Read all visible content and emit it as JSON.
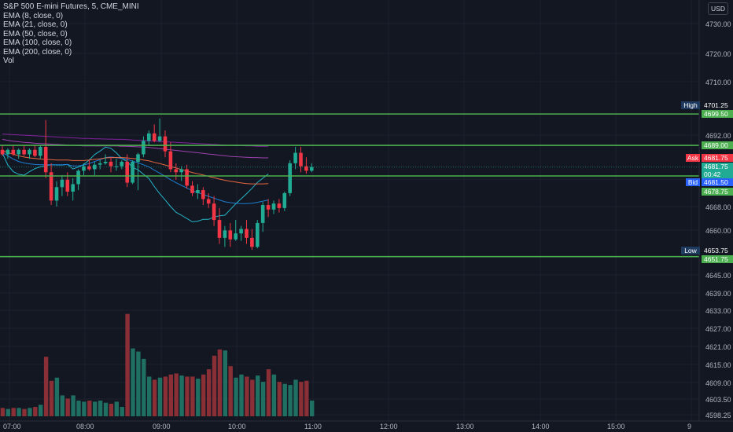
{
  "legend": {
    "title": "S&P 500 E-mini Futures, 5, CME_MINI",
    "indicators": [
      "EMA (8, close, 0)",
      "EMA (21, close, 0)",
      "EMA (50, close, 0)",
      "EMA (100, close, 0)",
      "EMA (200, close, 0)",
      "Vol"
    ]
  },
  "currency": "USD",
  "price_axis": [
    "4730.00",
    "4720.00",
    "4710.00",
    "4692.00",
    "4668.00",
    "4660.00",
    "4645.00",
    "4639.00",
    "4633.00",
    "4627.00",
    "4621.00",
    "4615.00",
    "4609.00",
    "4603.50",
    "4598.25"
  ],
  "time_axis": [
    "07:00",
    "08:00",
    "09:00",
    "10:00",
    "11:00",
    "12:00",
    "13:00",
    "14:00",
    "15:00",
    "9"
  ],
  "levels": {
    "high_label": "High",
    "high_value": "4701.25",
    "line1": "4699.50",
    "line2": "4689.00",
    "ask_label": "Ask",
    "ask_value": "4681.75",
    "last_value": "4681.75",
    "countdown": "00:42",
    "bid_label": "Bid",
    "bid_value": "4681.50",
    "line3": "4678.75",
    "low_label": "Low",
    "low_value": "4653.75",
    "line4": "4651.75"
  },
  "colors": {
    "up": "#22ab94",
    "down": "#f23645",
    "level_line": "#4caf50",
    "background": "#131722"
  },
  "chart_data": {
    "type": "candlestick",
    "symbol": "S&P 500 E-mini Futures",
    "interval": "5",
    "ylim": [
      4598.25,
      4733
    ],
    "candles": [
      {
        "o": 4687.5,
        "h": 4689,
        "l": 4685.5,
        "c": 4686
      },
      {
        "o": 4686,
        "h": 4688,
        "l": 4684.5,
        "c": 4687.5
      },
      {
        "o": 4687.5,
        "h": 4689,
        "l": 4685.5,
        "c": 4686
      },
      {
        "o": 4686,
        "h": 4688,
        "l": 4684.5,
        "c": 4687.5
      },
      {
        "o": 4687.5,
        "h": 4689,
        "l": 4685.5,
        "c": 4686
      },
      {
        "o": 4686,
        "h": 4688,
        "l": 4684.5,
        "c": 4687.5
      },
      {
        "o": 4687.5,
        "h": 4689,
        "l": 4685,
        "c": 4685.5
      },
      {
        "o": 4685.5,
        "h": 4689,
        "l": 4684.5,
        "c": 4688.5
      },
      {
        "o": 4688.5,
        "h": 4697.5,
        "l": 4678,
        "c": 4680
      },
      {
        "o": 4680,
        "h": 4683,
        "l": 4669,
        "c": 4670.5
      },
      {
        "o": 4670.5,
        "h": 4677,
        "l": 4668.5,
        "c": 4675
      },
      {
        "o": 4675,
        "h": 4679,
        "l": 4672,
        "c": 4677.5
      },
      {
        "o": 4677.5,
        "h": 4680,
        "l": 4672,
        "c": 4673.5
      },
      {
        "o": 4673.5,
        "h": 4678,
        "l": 4670.5,
        "c": 4676
      },
      {
        "o": 4676,
        "h": 4681,
        "l": 4674,
        "c": 4680.5
      },
      {
        "o": 4680.5,
        "h": 4683,
        "l": 4679,
        "c": 4682
      },
      {
        "o": 4682,
        "h": 4684,
        "l": 4680.5,
        "c": 4681
      },
      {
        "o": 4681,
        "h": 4683.5,
        "l": 4679,
        "c": 4682.5
      },
      {
        "o": 4682.5,
        "h": 4684,
        "l": 4681,
        "c": 4683
      },
      {
        "o": 4683,
        "h": 4686,
        "l": 4682.5,
        "c": 4683.5
      },
      {
        "o": 4683.5,
        "h": 4685,
        "l": 4680,
        "c": 4682
      },
      {
        "o": 4682,
        "h": 4684.5,
        "l": 4680.5,
        "c": 4682
      },
      {
        "o": 4682,
        "h": 4684,
        "l": 4681,
        "c": 4683.5
      },
      {
        "o": 4683.5,
        "h": 4686,
        "l": 4675,
        "c": 4676.5
      },
      {
        "o": 4676.5,
        "h": 4684,
        "l": 4676,
        "c": 4683.5
      },
      {
        "o": 4683.5,
        "h": 4686.5,
        "l": 4674,
        "c": 4686
      },
      {
        "o": 4686,
        "h": 4692,
        "l": 4685,
        "c": 4690.5
      },
      {
        "o": 4690.5,
        "h": 4694,
        "l": 4689,
        "c": 4693
      },
      {
        "o": 4693,
        "h": 4696,
        "l": 4690,
        "c": 4690.5
      },
      {
        "o": 4690.5,
        "h": 4698,
        "l": 4690,
        "c": 4692
      },
      {
        "o": 4692,
        "h": 4694,
        "l": 4685,
        "c": 4687
      },
      {
        "o": 4687,
        "h": 4690,
        "l": 4680,
        "c": 4681
      },
      {
        "o": 4681,
        "h": 4683,
        "l": 4677.5,
        "c": 4680
      },
      {
        "o": 4680,
        "h": 4682,
        "l": 4677,
        "c": 4681
      },
      {
        "o": 4681,
        "h": 4682.5,
        "l": 4674.5,
        "c": 4675.5
      },
      {
        "o": 4675.5,
        "h": 4677,
        "l": 4672,
        "c": 4673
      },
      {
        "o": 4673,
        "h": 4676,
        "l": 4671,
        "c": 4674
      },
      {
        "o": 4674,
        "h": 4675,
        "l": 4669,
        "c": 4671
      },
      {
        "o": 4671,
        "h": 4673,
        "l": 4668,
        "c": 4669.5
      },
      {
        "o": 4669.5,
        "h": 4672,
        "l": 4662,
        "c": 4664
      },
      {
        "o": 4664,
        "h": 4668,
        "l": 4656,
        "c": 4658
      },
      {
        "o": 4658,
        "h": 4662,
        "l": 4655,
        "c": 4660.5
      },
      {
        "o": 4660.5,
        "h": 4663,
        "l": 4655,
        "c": 4657.5
      },
      {
        "o": 4657.5,
        "h": 4664,
        "l": 4657,
        "c": 4659.5
      },
      {
        "o": 4659.5,
        "h": 4662,
        "l": 4657,
        "c": 4661
      },
      {
        "o": 4661,
        "h": 4664,
        "l": 4656,
        "c": 4658
      },
      {
        "o": 4658,
        "h": 4661,
        "l": 4654,
        "c": 4655
      },
      {
        "o": 4655,
        "h": 4664,
        "l": 4654.5,
        "c": 4663
      },
      {
        "o": 4663,
        "h": 4670,
        "l": 4660,
        "c": 4669
      },
      {
        "o": 4669,
        "h": 4671,
        "l": 4665,
        "c": 4667.5
      },
      {
        "o": 4667.5,
        "h": 4670.5,
        "l": 4666,
        "c": 4669.5
      },
      {
        "o": 4669.5,
        "h": 4671,
        "l": 4666.5,
        "c": 4668
      },
      {
        "o": 4668,
        "h": 4673.5,
        "l": 4667,
        "c": 4673
      },
      {
        "o": 4673,
        "h": 4684,
        "l": 4672,
        "c": 4683
      },
      {
        "o": 4683,
        "h": 4688.5,
        "l": 4681,
        "c": 4686.5
      },
      {
        "o": 4686.5,
        "h": 4688.5,
        "l": 4680,
        "c": 4682
      },
      {
        "o": 4682,
        "h": 4685,
        "l": 4679.5,
        "c": 4680.5
      },
      {
        "o": 4680.5,
        "h": 4683,
        "l": 4680,
        "c": 4681.75
      }
    ],
    "volume_units": "relative",
    "volume_max": 100,
    "volumes": [
      8,
      7,
      8,
      8,
      7,
      8,
      9,
      11,
      57,
      34,
      37,
      20,
      17,
      20,
      15,
      14,
      15,
      14,
      15,
      13,
      12,
      14,
      9,
      98,
      65,
      62,
      55,
      38,
      35,
      37,
      38,
      40,
      41,
      39,
      38,
      38,
      36,
      40,
      45,
      58,
      64,
      63,
      48,
      37,
      40,
      38,
      35,
      39,
      33,
      45,
      40,
      33,
      31,
      30,
      35,
      33,
      34,
      15
    ],
    "ema_lines": [
      {
        "name": "EMA (8, close, 0)",
        "color": "#26c6da",
        "values": [
          4686.5,
          4682.4,
          4680.2,
          4679.3,
          4679,
          4680.2,
          4681.2,
          4681.8,
          4682.2,
          4682.5,
          4682.4,
          4682.4,
          4682.6,
          4681.1,
          4681.7,
          4682.6,
          4684.1,
          4685.9,
          4687.1,
          4688.4,
          4688,
          4686.5,
          4684.6,
          4683.6,
          4681.6,
          4680.8,
          4679.3,
          4677.9,
          4675.2,
          4672.8,
          4670.7,
          4668.5,
          4666.6,
          4665.6,
          4664.5,
          4663.4,
          4663.6,
          4664.2,
          4664.2,
          4665,
          4665.4,
          4665.6,
          4667.5,
          4669.4,
          4671.1,
          4672.8,
          4674.6,
          4676.6,
          4678,
          4679.4
        ]
      },
      {
        "name": "EMA (21, close, 0)",
        "color": "#1e88e5",
        "values": [
          4686.6,
          4685.5,
          4684.4,
          4683.6,
          4683.1,
          4682.8,
          4682.6,
          4682.5,
          4682.5,
          4682.5,
          4682.5,
          4682.5,
          4682.6,
          4682.1,
          4682.1,
          4682.4,
          4682.9,
          4683.6,
          4684.2,
          4684.9,
          4685.1,
          4684.9,
          4684.6,
          4684.3,
          4683.7,
          4683.2,
          4682.5,
          4681.8,
          4680.7,
          4679.7,
          4678.6,
          4677.5,
          4676.5,
          4675.6,
          4674.7,
          4673.8,
          4673.2,
          4672.6,
          4671.9,
          4671.3,
          4670.7,
          4670.1,
          4669.8,
          4669.6,
          4669.5,
          4669.5,
          4669.6,
          4669.9,
          4670.3,
          4670.7
        ]
      },
      {
        "name": "EMA (50, close, 0)",
        "color": "#ff7043",
        "values": [
          4687.2,
          4686.6,
          4686,
          4685.5,
          4685.1,
          4684.8,
          4684.6,
          4684.4,
          4684.3,
          4684.2,
          4684.1,
          4684.1,
          4684.1,
          4683.9,
          4683.9,
          4683.9,
          4684.1,
          4684.3,
          4684.5,
          4684.8,
          4684.9,
          4684.9,
          4684.9,
          4684.8,
          4684.6,
          4684.4,
          4684.1,
          4683.8,
          4683.3,
          4682.9,
          4682.4,
          4681.9,
          4681.4,
          4680.9,
          4680.4,
          4679.9,
          4679.5,
          4679.1,
          4678.6,
          4678.2,
          4677.7,
          4677.3,
          4677,
          4676.7,
          4676.4,
          4676.2,
          4676.1,
          4676.1,
          4676.1,
          4676.2
        ]
      },
      {
        "name": "EMA (100, close, 0)",
        "color": "#ab47bc",
        "values": [
          4691,
          4690.7,
          4690.4,
          4690.2,
          4690,
          4689.9,
          4689.7,
          4689.6,
          4689.5,
          4689.4,
          4689.3,
          4689.2,
          4689.1,
          4689,
          4688.9,
          4688.8,
          4688.8,
          4688.8,
          4688.8,
          4688.8,
          4688.8,
          4688.8,
          4688.7,
          4688.7,
          4688.6,
          4688.5,
          4688.4,
          4688.3,
          4688.1,
          4687.9,
          4687.7,
          4687.5,
          4687.3,
          4687.1,
          4686.9,
          4686.7,
          4686.5,
          4686.3,
          4686.1,
          4685.9,
          4685.7,
          4685.5,
          4685.3,
          4685.2,
          4685.1,
          4685,
          4684.9,
          4684.9,
          4684.8,
          4684.8
        ]
      },
      {
        "name": "EMA (200, close, 0)",
        "color": "#8e24aa",
        "values": [
          4692.8,
          4692.7,
          4692.6,
          4692.5,
          4692.4,
          4692.3,
          4692.2,
          4692.1,
          4692,
          4691.9,
          4691.8,
          4691.7,
          4691.6,
          4691.5,
          4691.4,
          4691.3,
          4691.3,
          4691.2,
          4691.2,
          4691.1,
          4691.1,
          4691,
          4691,
          4690.9,
          4690.8,
          4690.7,
          4690.6,
          4690.5,
          4690.4,
          4690.3,
          4690.2,
          4690.1,
          4690,
          4689.9,
          4689.8,
          4689.7,
          4689.6,
          4689.5,
          4689.4,
          4689.3,
          4689.2,
          4689.1,
          4689,
          4688.9,
          4688.9,
          4688.8,
          4688.8,
          4688.7,
          4688.7,
          4688.7
        ]
      }
    ],
    "horizontal_levels": [
      4699.5,
      4689.0,
      4678.75,
      4651.75
    ]
  }
}
